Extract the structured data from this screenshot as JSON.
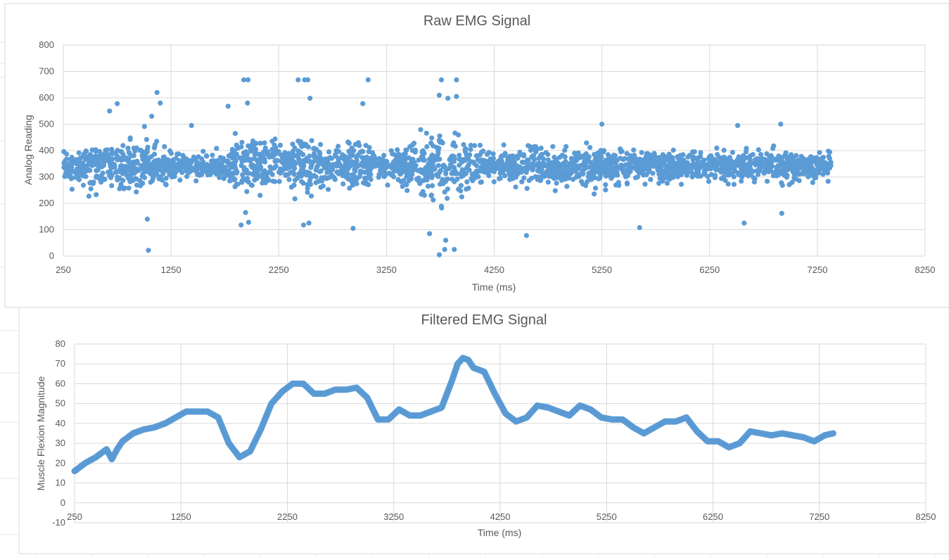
{
  "chart_data": [
    {
      "type": "scatter",
      "title": "Raw EMG Signal",
      "xlabel": "Time (ms)",
      "ylabel": "Analog Reading",
      "xlim": [
        250,
        8250
      ],
      "ylim": [
        0,
        800
      ],
      "x_ticks": [
        250,
        1250,
        2250,
        3250,
        4250,
        5250,
        6250,
        7250,
        8250
      ],
      "y_ticks": [
        0,
        100,
        200,
        300,
        400,
        500,
        600,
        700,
        800
      ],
      "grid": true,
      "legend": "none",
      "series_color": "#5b9bd5",
      "x_range_of_data": [
        250,
        7380
      ],
      "baseline_center": 340,
      "envelope": [
        {
          "x": 250,
          "half_width": 45
        },
        {
          "x": 600,
          "half_width": 90
        },
        {
          "x": 1000,
          "half_width": 110
        },
        {
          "x": 1250,
          "half_width": 70
        },
        {
          "x": 1600,
          "half_width": 35
        },
        {
          "x": 1900,
          "half_width": 120
        },
        {
          "x": 2150,
          "half_width": 90
        },
        {
          "x": 2450,
          "half_width": 120
        },
        {
          "x": 2700,
          "half_width": 80
        },
        {
          "x": 3000,
          "half_width": 90
        },
        {
          "x": 3250,
          "half_width": 50
        },
        {
          "x": 3500,
          "half_width": 110
        },
        {
          "x": 3750,
          "half_width": 140
        },
        {
          "x": 4000,
          "half_width": 90
        },
        {
          "x": 4250,
          "half_width": 55
        },
        {
          "x": 4750,
          "half_width": 70
        },
        {
          "x": 5250,
          "half_width": 70
        },
        {
          "x": 5750,
          "half_width": 60
        },
        {
          "x": 6250,
          "half_width": 55
        },
        {
          "x": 6750,
          "half_width": 60
        },
        {
          "x": 7380,
          "half_width": 60
        }
      ],
      "outliers": [
        [
          1120,
          620
        ],
        [
          1150,
          580
        ],
        [
          1070,
          530
        ],
        [
          1040,
          22
        ],
        [
          1030,
          140
        ],
        [
          750,
          578
        ],
        [
          680,
          550
        ],
        [
          1440,
          495
        ],
        [
          1925,
          668
        ],
        [
          1965,
          668
        ],
        [
          1960,
          580
        ],
        [
          1780,
          568
        ],
        [
          1900,
          118
        ],
        [
          1970,
          128
        ],
        [
          2430,
          668
        ],
        [
          2490,
          668
        ],
        [
          2520,
          668
        ],
        [
          2540,
          598
        ],
        [
          2480,
          118
        ],
        [
          2530,
          125
        ],
        [
          3080,
          668
        ],
        [
          3030,
          578
        ],
        [
          2940,
          105
        ],
        [
          3760,
          668
        ],
        [
          3900,
          668
        ],
        [
          3740,
          610
        ],
        [
          3820,
          598
        ],
        [
          3900,
          605
        ],
        [
          3740,
          5
        ],
        [
          3790,
          25
        ],
        [
          3800,
          60
        ],
        [
          3880,
          25
        ],
        [
          3650,
          85
        ],
        [
          5250,
          500
        ],
        [
          4550,
          78
        ],
        [
          5600,
          108
        ],
        [
          6510,
          495
        ],
        [
          6570,
          125
        ],
        [
          6910,
          500
        ],
        [
          6920,
          162
        ]
      ]
    },
    {
      "type": "line",
      "title": "Filtered EMG Signal",
      "xlabel": "Time (ms)",
      "ylabel": "Muscle Flexion Magnitude",
      "xlim": [
        250,
        8250
      ],
      "ylim": [
        -10,
        80
      ],
      "x_ticks": [
        250,
        1250,
        2250,
        3250,
        4250,
        5250,
        6250,
        7250,
        8250
      ],
      "y_ticks": [
        -10,
        0,
        10,
        20,
        30,
        40,
        50,
        60,
        70,
        80
      ],
      "grid": true,
      "legend": "none",
      "series_color": "#5b9bd5",
      "x": [
        250,
        350,
        450,
        550,
        600,
        650,
        700,
        800,
        900,
        1000,
        1100,
        1200,
        1300,
        1400,
        1500,
        1600,
        1700,
        1800,
        1900,
        2000,
        2100,
        2200,
        2300,
        2400,
        2500,
        2600,
        2700,
        2800,
        2900,
        3000,
        3100,
        3200,
        3300,
        3400,
        3500,
        3600,
        3700,
        3800,
        3850,
        3900,
        3950,
        4000,
        4100,
        4200,
        4300,
        4400,
        4500,
        4600,
        4700,
        4800,
        4900,
        5000,
        5100,
        5200,
        5300,
        5400,
        5500,
        5600,
        5700,
        5800,
        5900,
        6000,
        6100,
        6200,
        6300,
        6400,
        6500,
        6600,
        6700,
        6800,
        6900,
        7000,
        7100,
        7200,
        7300,
        7380
      ],
      "y": [
        16,
        20,
        23,
        27,
        22,
        27,
        31,
        35,
        37,
        38,
        40,
        43,
        46,
        46,
        46,
        43,
        30,
        23,
        26,
        37,
        50,
        56,
        60,
        60,
        55,
        55,
        57,
        57,
        58,
        53,
        42,
        42,
        47,
        44,
        44,
        46,
        48,
        62,
        70,
        73,
        72,
        68,
        66,
        55,
        45,
        41,
        43,
        49,
        48,
        46,
        44,
        49,
        47,
        43,
        42,
        42,
        38,
        35,
        38,
        41,
        41,
        43,
        36,
        31,
        31,
        28,
        30,
        36,
        35,
        34,
        35,
        34,
        33,
        31,
        34,
        35
      ]
    }
  ]
}
